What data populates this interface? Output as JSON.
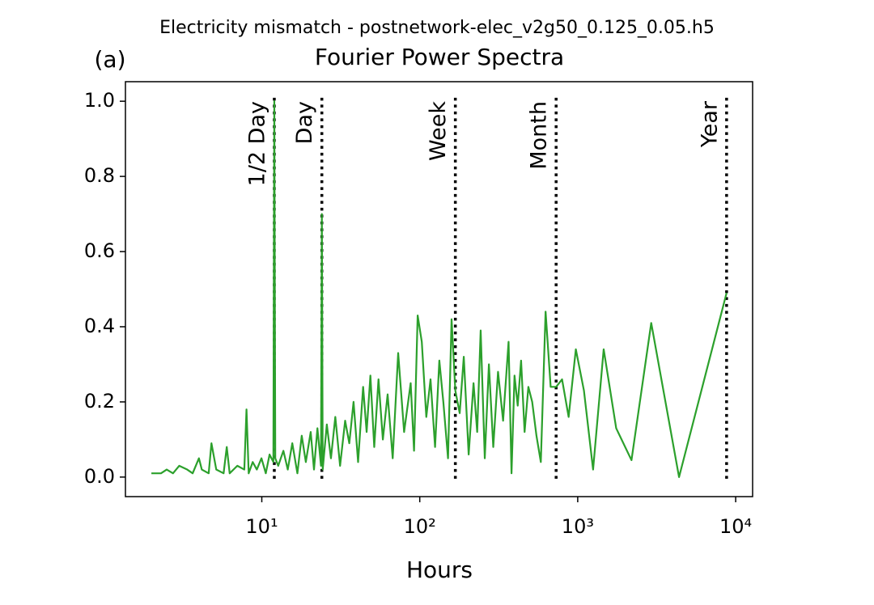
{
  "chart_data": {
    "type": "line",
    "suptitle": "Electricity mismatch - postnetwork-elec_v2g50_0.125_0.05.h5",
    "panel_label": "(a)",
    "title": "Fourier Power Spectra",
    "xlabel": "Hours",
    "xscale": "log",
    "xlim": [
      1.37,
      12800
    ],
    "ylim": [
      -0.052,
      1.052
    ],
    "xticks": [
      {
        "value": 10,
        "label": "10¹"
      },
      {
        "value": 100,
        "label": "10²"
      },
      {
        "value": 1000,
        "label": "10³"
      },
      {
        "value": 10000,
        "label": "10⁴"
      }
    ],
    "yticks": [
      {
        "value": 0,
        "label": "0.0"
      },
      0.2,
      0.4,
      0.6,
      0.8,
      {
        "value": 1,
        "label": "1.0"
      }
    ],
    "x": [
      8760,
      4380,
      2920,
      2190,
      1752,
      1460,
      1251,
      1095,
      973,
      876,
      796,
      730,
      674,
      626,
      584,
      548,
      515,
      487,
      461,
      438,
      417,
      398,
      381,
      365,
      337,
      313,
      292,
      274,
      258,
      243,
      231,
      219,
      204,
      190,
      179,
      168,
      159,
      151,
      141,
      133,
      125,
      117,
      110,
      103,
      97,
      92,
      87.6,
      79.6,
      73,
      67.4,
      62.6,
      58.4,
      54.8,
      51.5,
      48.7,
      46.1,
      43.8,
      40.7,
      38.1,
      35.8,
      33.7,
      31.3,
      29.2,
      27.4,
      25.8,
      24.3,
      24,
      23.7,
      22.5,
      21.4,
      20.4,
      19,
      17.9,
      16.8,
      15.6,
      14.6,
      13.7,
      12.7,
      12.17,
      12,
      11.84,
      11.2,
      10.6,
      9.95,
      9.3,
      8.76,
      8.26,
      8,
      7.75,
      7,
      6.26,
      6,
      5.73,
      5.15,
      4.8,
      4.61,
      4.17,
      4,
      3.65,
      3.37,
      3,
      2.74,
      2.5,
      2.3,
      2
    ],
    "series": [
      {
        "color": "#2ca02c",
        "values": [
          0.49,
          0.0,
          0.41,
          0.045,
          0.13,
          0.34,
          0.02,
          0.23,
          0.34,
          0.16,
          0.26,
          0.24,
          0.24,
          0.44,
          0.04,
          0.11,
          0.2,
          0.24,
          0.12,
          0.31,
          0.19,
          0.27,
          0.01,
          0.36,
          0.15,
          0.28,
          0.08,
          0.3,
          0.05,
          0.39,
          0.12,
          0.25,
          0.06,
          0.32,
          0.17,
          0.23,
          0.42,
          0.05,
          0.2,
          0.31,
          0.08,
          0.26,
          0.16,
          0.36,
          0.43,
          0.07,
          0.25,
          0.12,
          0.33,
          0.05,
          0.22,
          0.1,
          0.26,
          0.08,
          0.27,
          0.12,
          0.24,
          0.04,
          0.2,
          0.09,
          0.15,
          0.03,
          0.16,
          0.05,
          0.14,
          0.02,
          0.7,
          0.03,
          0.13,
          0.02,
          0.12,
          0.04,
          0.11,
          0.01,
          0.09,
          0.02,
          0.07,
          0.03,
          0.05,
          1.0,
          0.04,
          0.06,
          0.01,
          0.05,
          0.02,
          0.04,
          0.01,
          0.18,
          0.02,
          0.03,
          0.01,
          0.08,
          0.01,
          0.02,
          0.09,
          0.01,
          0.02,
          0.05,
          0.01,
          0.02,
          0.03,
          0.01,
          0.02,
          0.01,
          0.01
        ]
      }
    ],
    "vlines": [
      {
        "x": 12,
        "label": "1/2 Day"
      },
      {
        "x": 24,
        "label": "Day"
      },
      {
        "x": 168,
        "label": "Week"
      },
      {
        "x": 730,
        "label": "Month"
      },
      {
        "x": 8760,
        "label": "Year"
      }
    ],
    "vline_color": "#000000"
  }
}
